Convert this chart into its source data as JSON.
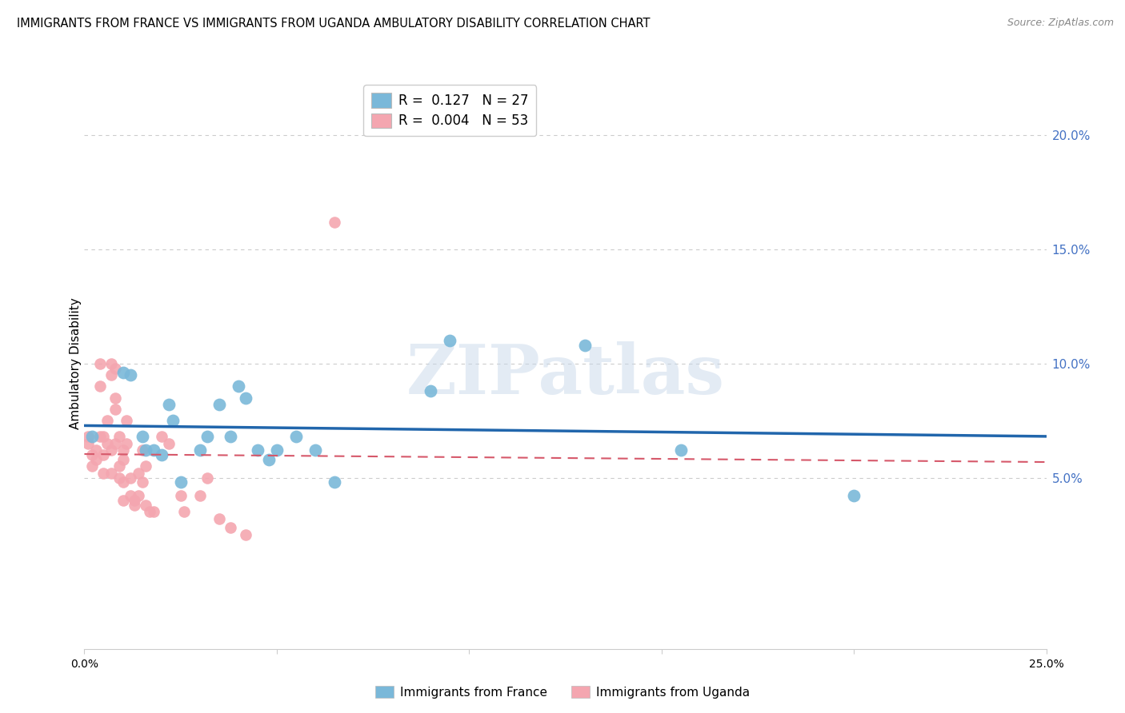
{
  "title": "IMMIGRANTS FROM FRANCE VS IMMIGRANTS FROM UGANDA AMBULATORY DISABILITY CORRELATION CHART",
  "source": "Source: ZipAtlas.com",
  "ylabel": "Ambulatory Disability",
  "right_yticks_labels": [
    "20.0%",
    "15.0%",
    "10.0%",
    "5.0%"
  ],
  "right_ytick_vals": [
    0.2,
    0.15,
    0.1,
    0.05
  ],
  "xlim": [
    0.0,
    0.25
  ],
  "ylim": [
    -0.025,
    0.225
  ],
  "france_color": "#7ab8d9",
  "uganda_color": "#f4a6b0",
  "france_line_color": "#2166ac",
  "uganda_line_color": "#d6586a",
  "watermark": "ZIPatlas",
  "france_x": [
    0.002,
    0.01,
    0.012,
    0.015,
    0.016,
    0.018,
    0.02,
    0.022,
    0.023,
    0.025,
    0.03,
    0.032,
    0.035,
    0.038,
    0.04,
    0.042,
    0.045,
    0.048,
    0.05,
    0.055,
    0.06,
    0.065,
    0.09,
    0.095,
    0.13,
    0.155,
    0.2
  ],
  "france_y": [
    0.068,
    0.096,
    0.095,
    0.068,
    0.062,
    0.062,
    0.06,
    0.082,
    0.075,
    0.048,
    0.062,
    0.068,
    0.082,
    0.068,
    0.09,
    0.085,
    0.062,
    0.058,
    0.062,
    0.068,
    0.062,
    0.048,
    0.088,
    0.11,
    0.108,
    0.062,
    0.042
  ],
  "uganda_x": [
    0.001,
    0.001,
    0.002,
    0.002,
    0.003,
    0.003,
    0.004,
    0.004,
    0.004,
    0.005,
    0.005,
    0.005,
    0.006,
    0.006,
    0.007,
    0.007,
    0.007,
    0.007,
    0.008,
    0.008,
    0.008,
    0.008,
    0.009,
    0.009,
    0.009,
    0.01,
    0.01,
    0.01,
    0.01,
    0.011,
    0.011,
    0.012,
    0.012,
    0.013,
    0.013,
    0.014,
    0.014,
    0.015,
    0.015,
    0.016,
    0.016,
    0.017,
    0.018,
    0.02,
    0.022,
    0.025,
    0.026,
    0.03,
    0.032,
    0.035,
    0.038,
    0.042,
    0.065
  ],
  "uganda_y": [
    0.065,
    0.068,
    0.06,
    0.055,
    0.058,
    0.062,
    0.09,
    0.1,
    0.068,
    0.06,
    0.068,
    0.052,
    0.075,
    0.065,
    0.095,
    0.1,
    0.062,
    0.052,
    0.098,
    0.085,
    0.08,
    0.065,
    0.068,
    0.055,
    0.05,
    0.058,
    0.062,
    0.048,
    0.04,
    0.065,
    0.075,
    0.05,
    0.042,
    0.04,
    0.038,
    0.052,
    0.042,
    0.062,
    0.048,
    0.038,
    0.055,
    0.035,
    0.035,
    0.068,
    0.065,
    0.042,
    0.035,
    0.042,
    0.05,
    0.032,
    0.028,
    0.025,
    0.162
  ]
}
